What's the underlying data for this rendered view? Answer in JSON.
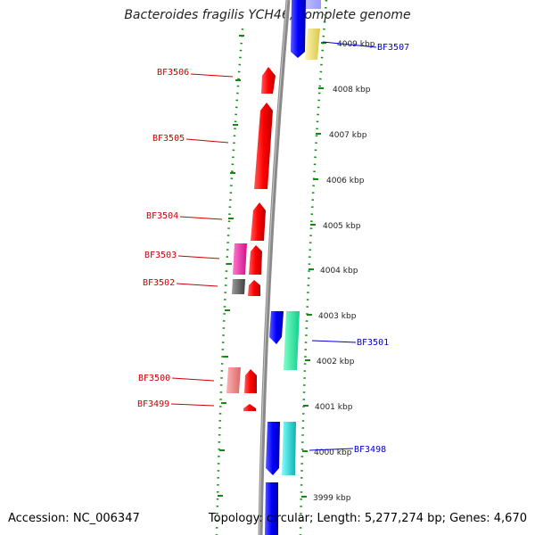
{
  "title": "Bacteroides fragilis YCH46, complete genome",
  "footer": {
    "accession": "Accession: NC_006347",
    "summary": "Topology: circular; Length: 5,277,274 bp; Genes: 4,670"
  },
  "colors": {
    "backbone": "#7a7a7a",
    "dotted_track": "#138a13",
    "left_label": "#cc0000",
    "right_label": "#0000cc"
  },
  "kbp_ticks": [
    {
      "label": "4009 kbp",
      "kbp": 4009
    },
    {
      "label": "4008 kbp",
      "kbp": 4008
    },
    {
      "label": "4007 kbp",
      "kbp": 4007
    },
    {
      "label": "4006 kbp",
      "kbp": 4006
    },
    {
      "label": "4005 kbp",
      "kbp": 4005
    },
    {
      "label": "4004 kbp",
      "kbp": 4004
    },
    {
      "label": "4003 kbp",
      "kbp": 4003
    },
    {
      "label": "4002 kbp",
      "kbp": 4002
    },
    {
      "label": "4001 kbp",
      "kbp": 4001
    },
    {
      "label": "4000 kbp",
      "kbp": 4000
    },
    {
      "label": "3999 kbp",
      "kbp": 3999
    }
  ],
  "gene_labels_left": [
    "BF3506",
    "BF3505",
    "BF3504",
    "BF3503",
    "BF3502",
    "BF3500",
    "BF3499"
  ],
  "gene_labels_right": [
    "BF3507",
    "BF3501",
    "BF3498"
  ]
}
